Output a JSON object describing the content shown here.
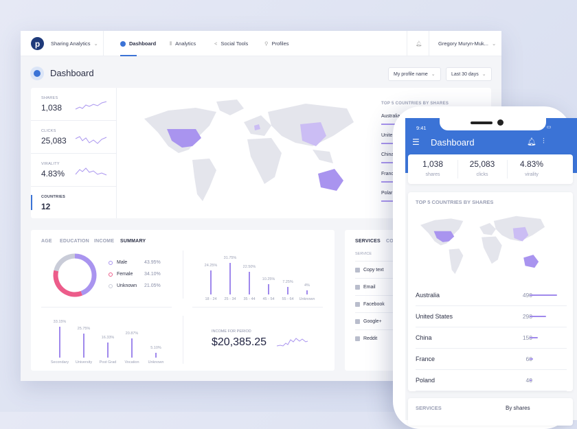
{
  "nav": {
    "brand": "Sharing Analytics",
    "items": [
      {
        "label": "Dashboard",
        "icon": "info-icon",
        "active": true
      },
      {
        "label": "Analytics",
        "icon": "bar-chart-icon"
      },
      {
        "label": "Social Tools",
        "icon": "share-icon"
      },
      {
        "label": "Profiles",
        "icon": "user-icon"
      }
    ],
    "user": "Gregory Muryn-Muk..."
  },
  "page": {
    "title": "Dashboard",
    "profile_select": "My profile name",
    "period_select": "Last 30 days"
  },
  "stats": [
    {
      "label": "SHARES",
      "value": "1,038"
    },
    {
      "label": "CLICKS",
      "value": "25,083"
    },
    {
      "label": "VIRALITY",
      "value": "4.83%"
    },
    {
      "label": "COUNTRIES",
      "value": "12"
    }
  ],
  "top_countries": {
    "title": "TOP 5 COUNTRIES BY SHARES",
    "items": [
      {
        "name": "Australia",
        "value": 490
      },
      {
        "name": "United States",
        "value": 298
      },
      {
        "name": "China",
        "value": 150
      },
      {
        "name": "France",
        "value": 60
      },
      {
        "name": "Poland",
        "value": 40
      }
    ],
    "truncated": [
      "Australia",
      "Unite",
      "China",
      "Franc",
      "Polar"
    ]
  },
  "demo": {
    "tabs": [
      "AGE",
      "EDUCATION",
      "INCOME",
      "SUMMARY"
    ],
    "active_tab": "SUMMARY",
    "gender": [
      {
        "label": "Male",
        "value": "43.95%",
        "pct": 43.95,
        "color": "#a994ef"
      },
      {
        "label": "Female",
        "value": "34.10%",
        "pct": 34.1,
        "color": "#ec5c8a"
      },
      {
        "label": "Unknown",
        "value": "21.05%",
        "pct": 21.05,
        "color": "#c9ccd8"
      }
    ],
    "age": [
      {
        "label": "18 - 24",
        "value": "24.25%",
        "pct": 24.25
      },
      {
        "label": "25 - 34",
        "value": "31.75%",
        "pct": 31.75
      },
      {
        "label": "35 - 44",
        "value": "22.50%",
        "pct": 22.5
      },
      {
        "label": "45 - 54",
        "value": "10.25%",
        "pct": 10.25
      },
      {
        "label": "55 - 64",
        "value": "7.25%",
        "pct": 7.25
      },
      {
        "label": "Unknown",
        "value": "4%",
        "pct": 4
      }
    ],
    "education": [
      {
        "label": "Secondary",
        "value": "33.15%",
        "pct": 33.15
      },
      {
        "label": "University",
        "value": "25.75%",
        "pct": 25.75
      },
      {
        "label": "Post Grad",
        "value": "16.33%",
        "pct": 16.33
      },
      {
        "label": "Vocation",
        "value": "20.87%",
        "pct": 20.87
      },
      {
        "label": "Unknown",
        "value": "5.10%",
        "pct": 5.1
      }
    ],
    "income_label": "INCOME FOR PERIOD",
    "income_value": "$20,385.25"
  },
  "services": {
    "tabs": [
      "SERVICES",
      "CO"
    ],
    "header": "SERVICE",
    "items": [
      {
        "label": "Copy text",
        "icon": "clipboard-icon"
      },
      {
        "label": "Email",
        "icon": "email-icon"
      },
      {
        "label": "Facebook",
        "icon": "facebook-icon"
      },
      {
        "label": "Google+",
        "icon": "google-plus-icon"
      },
      {
        "label": "Reddit",
        "icon": "reddit-icon"
      }
    ]
  },
  "mobile": {
    "time": "9:41",
    "title": "Dashboard",
    "stats": [
      {
        "value": "1,038",
        "label": "shares"
      },
      {
        "value": "25,083",
        "label": "clicks"
      },
      {
        "value": "4.83%",
        "label": "virality"
      }
    ],
    "services_label": "SERVICES",
    "sort": "By shares"
  },
  "colors": {
    "accent": "#3b73d6",
    "bar": "#9f88ec",
    "female": "#ec5c8a"
  }
}
